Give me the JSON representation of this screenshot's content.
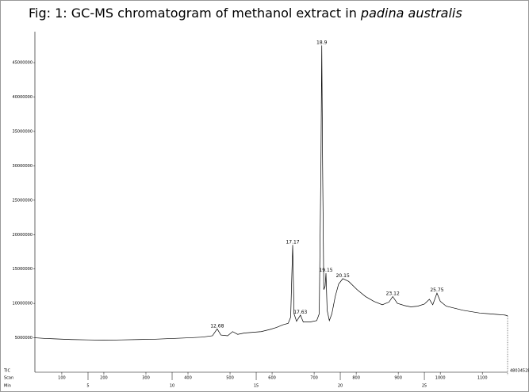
{
  "chart_data": {
    "type": "line",
    "title": "Fig: 1: GC-MS chromatogram of methanol extract in ",
    "title_italic": "padina australis",
    "xlabel": "Min",
    "x2label": "Scan",
    "xlim": [
      1.84,
      29.95
    ],
    "xticks": [
      5,
      10,
      15,
      20,
      25
    ],
    "x2lim": [
      36,
      1160
    ],
    "x2ticks": [
      100,
      200,
      300,
      400,
      500,
      600,
      700,
      800,
      900,
      1000,
      1100
    ],
    "ylim": [
      0,
      49500000
    ],
    "yticks": [
      5000000,
      10000000,
      15000000,
      20000000,
      25000000,
      30000000,
      35000000,
      40000000,
      45000000
    ],
    "scale_max": 48034528,
    "peak_labels": [
      12.68,
      17.17,
      17.63,
      18.9,
      19.15,
      20.15,
      23.12,
      25.75
    ],
    "series": [
      {
        "name": "TIC",
        "color": "#000000",
        "x": [
          1.84,
          2.5,
          3.0,
          4,
          5,
          6,
          7,
          8,
          9,
          10,
          11,
          11.8,
          12.4,
          12.68,
          12.9,
          13.3,
          13.6,
          13.9,
          14.3,
          14.8,
          15.3,
          15.8,
          16.2,
          16.6,
          16.9,
          17.05,
          17.17,
          17.25,
          17.4,
          17.63,
          17.8,
          18.2,
          18.6,
          18.75,
          18.85,
          18.9,
          18.95,
          19.02,
          19.1,
          19.15,
          19.22,
          19.35,
          19.5,
          19.7,
          19.9,
          20.15,
          20.5,
          21.0,
          21.5,
          22.0,
          22.5,
          22.9,
          23.12,
          23.4,
          23.8,
          24.2,
          24.6,
          25.0,
          25.3,
          25.5,
          25.75,
          25.95,
          26.3,
          26.8,
          27.3,
          27.8,
          28.3,
          28.8,
          29.3,
          29.8,
          29.95
        ],
        "values": [
          5000000,
          4900000,
          4850000,
          4750000,
          4700000,
          4650000,
          4700000,
          4750000,
          4800000,
          4900000,
          5000000,
          5100000,
          5300000,
          6300000,
          5400000,
          5300000,
          5900000,
          5500000,
          5700000,
          5800000,
          5900000,
          6200000,
          6500000,
          6900000,
          7100000,
          8000000,
          18500000,
          8500000,
          7400000,
          8300000,
          7300000,
          7300000,
          7500000,
          8500000,
          30000000,
          47500000,
          30000000,
          12000000,
          12500000,
          14400000,
          9000000,
          7500000,
          8500000,
          11000000,
          12800000,
          13600000,
          13200000,
          12000000,
          11000000,
          10300000,
          9800000,
          10200000,
          11000000,
          10000000,
          9700000,
          9500000,
          9600000,
          9900000,
          10600000,
          9800000,
          11500000,
          10300000,
          9600000,
          9300000,
          9000000,
          8800000,
          8600000,
          8500000,
          8400000,
          8300000,
          8200000
        ]
      }
    ]
  }
}
